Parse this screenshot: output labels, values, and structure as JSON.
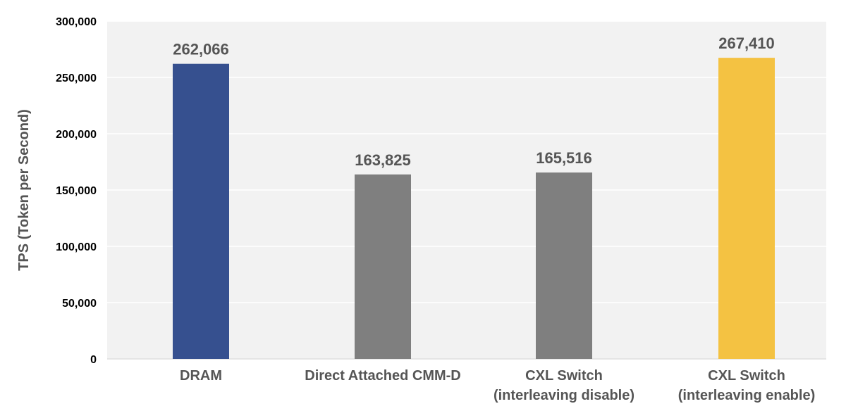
{
  "chart_data": {
    "type": "bar",
    "title": "",
    "xlabel": "",
    "ylabel": "TPS (Token per Second)",
    "ylim": [
      0,
      300000
    ],
    "ytick_values": [
      0,
      50000,
      100000,
      150000,
      200000,
      250000,
      300000
    ],
    "ytick_labels": [
      "0",
      "50,000",
      "100,000",
      "150,000",
      "200,000",
      "250,000",
      "300,000"
    ],
    "categories": [
      [
        "DRAM"
      ],
      [
        "Direct Attached CMM-D"
      ],
      [
        "CXL Switch",
        "(interleaving disable)"
      ],
      [
        "CXL Switch",
        "(interleaving enable)"
      ]
    ],
    "values": [
      262066,
      163825,
      165516,
      267410
    ],
    "value_labels": [
      "262,066",
      "163,825",
      "165,516",
      "267,410"
    ],
    "bar_colors": [
      "#36508f",
      "#7f7f7f",
      "#7f7f7f",
      "#f4c242"
    ],
    "plot_background": "#f2f2f2",
    "grid": true,
    "grid_color": "#ffffff",
    "legend": "none"
  }
}
